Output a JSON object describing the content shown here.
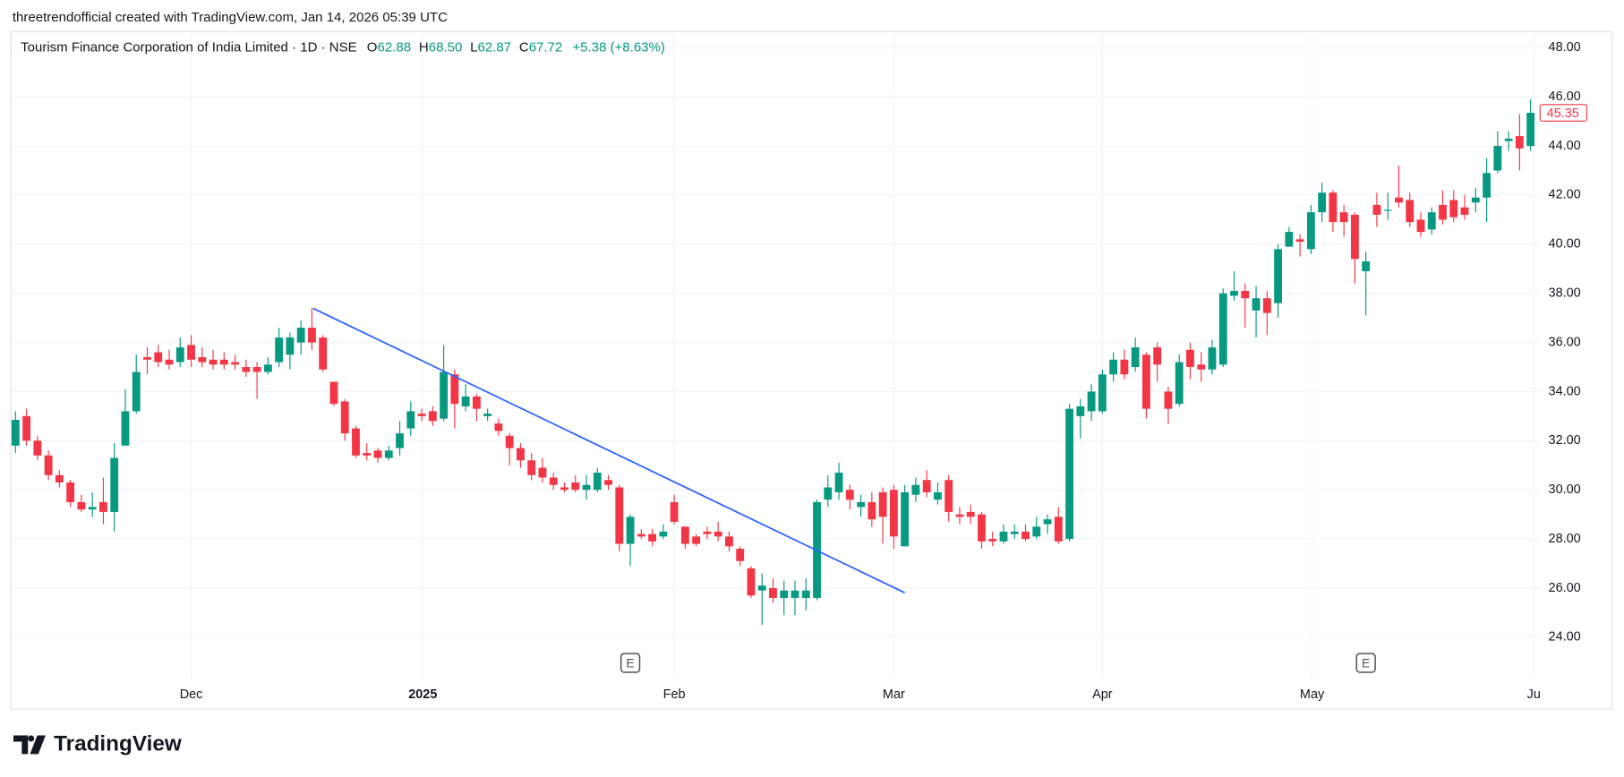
{
  "header": "threetrendofficial created with TradingView.com, Jan 14, 2026 05:39 UTC",
  "brand": "TradingView",
  "chart_data": {
    "type": "candlestick",
    "title": "Tourism Finance Corporation of India Limited · 1D · NSE",
    "legend": [
      {
        "key": "O",
        "value": "62.88"
      },
      {
        "key": "H",
        "value": "68.50"
      },
      {
        "key": "L",
        "value": "62.87"
      },
      {
        "key": "C",
        "value": "67.72"
      }
    ],
    "change": "+5.38 (+8.63%)",
    "up_color": "#089981",
    "down_color": "#f23645",
    "open": [
      31.8,
      33.0,
      32.0,
      31.4,
      30.6,
      30.3,
      29.5,
      29.2,
      29.5,
      29.1,
      31.8,
      33.2,
      35.4,
      35.6,
      35.3,
      35.2,
      35.9,
      35.4,
      35.3,
      35.3,
      35.2,
      35.0,
      35.0,
      34.8,
      35.2,
      35.5,
      36.0,
      36.6,
      36.2,
      34.4,
      33.6,
      32.5,
      31.5,
      31.6,
      31.3,
      31.7,
      32.5,
      33.1,
      33.2,
      32.9,
      34.7,
      33.4,
      33.8,
      33.0,
      32.7,
      32.2,
      31.7,
      31.2,
      30.9,
      30.5,
      30.1,
      30.3,
      30.0,
      30.0,
      30.4,
      30.1,
      27.8,
      28.2,
      28.2,
      28.1,
      29.5,
      28.5,
      28.1,
      28.3,
      28.3,
      28.1,
      27.6,
      26.8,
      25.9,
      26.0,
      25.6,
      25.6,
      25.6,
      25.6,
      29.6,
      29.9,
      30.0,
      29.3,
      29.5,
      29.9,
      30.0,
      27.7,
      29.8,
      30.4,
      29.6,
      30.4,
      29.0,
      29.1,
      29.0,
      28.0,
      27.9,
      28.2,
      28.3,
      28.1,
      28.6,
      28.9,
      28.0,
      33.0,
      33.2,
      33.2,
      34.7,
      35.3,
      35.0,
      35.5,
      35.8,
      34.0,
      33.5,
      35.7,
      35.1,
      34.9,
      35.1,
      37.9,
      38.1,
      37.3,
      37.8,
      37.6,
      39.9,
      40.2,
      39.8,
      41.3,
      42.1,
      41.3,
      41.2,
      38.9,
      41.6,
      41.4,
      41.9,
      41.8,
      41.0,
      40.6,
      41.6,
      41.8,
      41.5,
      41.7,
      41.9,
      43.0,
      44.2,
      44.4,
      44.0
    ],
    "high": [
      33.2,
      33.3,
      32.2,
      31.6,
      30.8,
      30.4,
      29.8,
      29.9,
      30.5,
      31.9,
      34.1,
      35.5,
      35.8,
      35.9,
      35.7,
      36.2,
      36.3,
      35.8,
      35.7,
      35.6,
      35.5,
      35.3,
      35.2,
      35.4,
      36.6,
      36.4,
      36.9,
      37.4,
      36.3,
      34.4,
      33.7,
      32.6,
      31.9,
      31.7,
      31.8,
      32.8,
      33.6,
      33.3,
      33.4,
      35.9,
      34.9,
      34.3,
      33.9,
      33.3,
      32.9,
      32.3,
      31.9,
      31.5,
      31.3,
      30.7,
      30.3,
      30.6,
      30.6,
      30.9,
      30.6,
      30.2,
      29.0,
      28.4,
      28.4,
      28.6,
      29.8,
      28.5,
      28.2,
      28.5,
      28.7,
      28.3,
      27.7,
      26.9,
      26.6,
      26.4,
      26.3,
      26.3,
      26.4,
      29.6,
      30.6,
      31.1,
      30.2,
      29.8,
      29.9,
      30.1,
      30.2,
      30.2,
      30.5,
      30.8,
      30.3,
      30.6,
      29.3,
      29.4,
      29.1,
      28.3,
      28.6,
      28.6,
      28.6,
      28.9,
      29.0,
      29.3,
      33.5,
      33.7,
      34.3,
      34.9,
      35.6,
      35.7,
      36.2,
      35.6,
      36.0,
      34.2,
      35.5,
      36.0,
      35.6,
      36.1,
      38.2,
      38.9,
      38.4,
      38.3,
      38.1,
      40.0,
      40.7,
      40.4,
      41.6,
      42.5,
      42.2,
      41.6,
      41.3,
      39.7,
      42.1,
      42.1,
      43.2,
      42.1,
      41.3,
      41.5,
      42.2,
      42.2,
      42.0,
      42.3,
      43.5,
      44.6,
      44.6,
      45.3,
      45.9
    ],
    "low": [
      31.5,
      31.8,
      31.2,
      30.4,
      30.1,
      29.3,
      29.1,
      28.9,
      28.6,
      28.3,
      31.8,
      33.1,
      34.7,
      35.0,
      34.9,
      35.0,
      35.0,
      35.0,
      34.9,
      34.9,
      34.9,
      34.6,
      33.7,
      34.7,
      35.0,
      34.9,
      35.5,
      35.7,
      34.8,
      33.4,
      32.0,
      31.3,
      31.2,
      31.1,
      31.2,
      31.4,
      32.2,
      32.8,
      32.6,
      32.8,
      32.5,
      33.2,
      32.8,
      32.8,
      32.2,
      31.0,
      30.9,
      30.4,
      30.3,
      30.0,
      29.9,
      29.9,
      29.6,
      29.9,
      30.0,
      27.5,
      26.9,
      28.0,
      27.7,
      28.0,
      28.6,
      27.6,
      27.7,
      28.0,
      27.9,
      27.5,
      26.9,
      25.6,
      24.5,
      25.4,
      24.9,
      24.9,
      25.1,
      25.5,
      29.3,
      29.6,
      29.2,
      28.9,
      28.5,
      27.8,
      27.6,
      27.7,
      29.5,
      29.7,
      29.4,
      28.7,
      28.6,
      28.6,
      27.6,
      27.7,
      27.8,
      28.0,
      27.9,
      28.0,
      28.2,
      27.8,
      27.9,
      32.1,
      32.8,
      33.1,
      34.4,
      34.5,
      34.8,
      32.9,
      34.4,
      32.7,
      33.4,
      34.5,
      34.4,
      34.7,
      35.0,
      37.7,
      36.6,
      36.2,
      36.3,
      37.0,
      39.9,
      39.5,
      39.6,
      40.9,
      40.5,
      40.3,
      38.4,
      37.1,
      40.7,
      41.0,
      41.5,
      40.7,
      40.3,
      40.4,
      40.8,
      40.9,
      41.0,
      41.3,
      40.9,
      42.9,
      43.8,
      43.0,
      43.8
    ],
    "close": [
      32.85,
      32.0,
      31.4,
      30.6,
      30.3,
      29.5,
      29.2,
      29.3,
      29.1,
      31.3,
      33.2,
      34.8,
      35.3,
      35.2,
      35.1,
      35.8,
      35.3,
      35.2,
      35.1,
      35.1,
      35.1,
      34.8,
      34.8,
      35.1,
      36.2,
      36.2,
      36.6,
      36.0,
      34.9,
      33.5,
      32.3,
      31.4,
      31.4,
      31.3,
      31.6,
      32.3,
      33.2,
      33.0,
      32.8,
      34.8,
      33.5,
      33.8,
      33.3,
      33.1,
      32.4,
      31.7,
      31.2,
      30.6,
      30.5,
      30.2,
      30.0,
      30.0,
      30.2,
      30.7,
      30.2,
      27.8,
      28.9,
      28.1,
      27.9,
      28.3,
      28.7,
      27.8,
      27.8,
      28.2,
      28.1,
      27.7,
      27.1,
      25.7,
      26.1,
      25.6,
      25.9,
      25.9,
      25.9,
      29.5,
      30.1,
      30.7,
      29.6,
      29.5,
      28.8,
      28.9,
      28.1,
      29.9,
      30.2,
      29.9,
      29.9,
      29.1,
      28.9,
      28.9,
      27.9,
      27.9,
      28.3,
      28.3,
      28.0,
      28.5,
      28.8,
      27.9,
      33.3,
      33.4,
      34.0,
      34.7,
      35.3,
      34.7,
      35.8,
      33.3,
      35.1,
      33.3,
      35.2,
      35.0,
      34.9,
      35.8,
      38.0,
      38.1,
      37.8,
      37.8,
      37.2,
      39.8,
      40.5,
      40.1,
      41.3,
      42.1,
      40.9,
      40.9,
      39.4,
      39.3,
      41.2,
      41.4,
      41.7,
      40.9,
      40.5,
      41.3,
      41.0,
      41.1,
      41.2,
      41.9,
      42.9,
      44.0,
      44.3,
      43.9,
      45.35
    ],
    "xlim": [
      -0.47,
      138.87
    ],
    "ylim": [
      22.32,
      48.63
    ],
    "xticks": [
      {
        "value": 16,
        "label": "Dec"
      },
      {
        "value": 37.1,
        "label": "2025",
        "bold": true
      },
      {
        "value": 60,
        "label": "Feb"
      },
      {
        "value": 80,
        "label": "Mar"
      },
      {
        "value": 99,
        "label": "Apr"
      },
      {
        "value": 118.1,
        "label": "May"
      },
      {
        "value": 138.3,
        "label": "Ju"
      }
    ],
    "yticks": [
      {
        "value": 24,
        "label": "24.00"
      },
      {
        "value": 26,
        "label": "26.00"
      },
      {
        "value": 28,
        "label": "28.00"
      },
      {
        "value": 30,
        "label": "30.00"
      },
      {
        "value": 32,
        "label": "32.00"
      },
      {
        "value": 34,
        "label": "34.00"
      },
      {
        "value": 36,
        "label": "36.00"
      },
      {
        "value": 38,
        "label": "38.00"
      },
      {
        "value": 40,
        "label": "40.00"
      },
      {
        "value": 42,
        "label": "42.00"
      },
      {
        "value": 44,
        "label": "44.00"
      },
      {
        "value": 46,
        "label": "46.00"
      },
      {
        "value": 48,
        "label": "48.00"
      }
    ],
    "grid": true,
    "last_price": {
      "value": 45.35,
      "label": "45.35",
      "color": "#f23645"
    },
    "trendline": {
      "x": [
        27.1,
        81
      ],
      "y": [
        37.39,
        25.81
      ],
      "color": "#2962ff"
    },
    "events": [
      {
        "x": 56,
        "label": "E"
      },
      {
        "x": 123,
        "label": "E"
      }
    ]
  }
}
